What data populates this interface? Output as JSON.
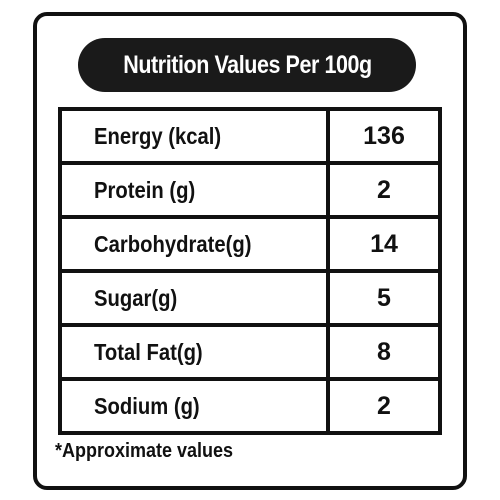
{
  "header": {
    "title": "Nutrition Values Per 100g"
  },
  "table": {
    "rows": [
      [
        "Energy (kcal)",
        136
      ],
      [
        "Protein (g)",
        2
      ],
      [
        "Carbohydrate(g)",
        14
      ],
      [
        "Sugar(g)",
        5
      ],
      [
        "Total Fat(g)",
        8
      ],
      [
        "Sodium (g)",
        2
      ]
    ]
  },
  "footnote": "*Approximate values"
}
